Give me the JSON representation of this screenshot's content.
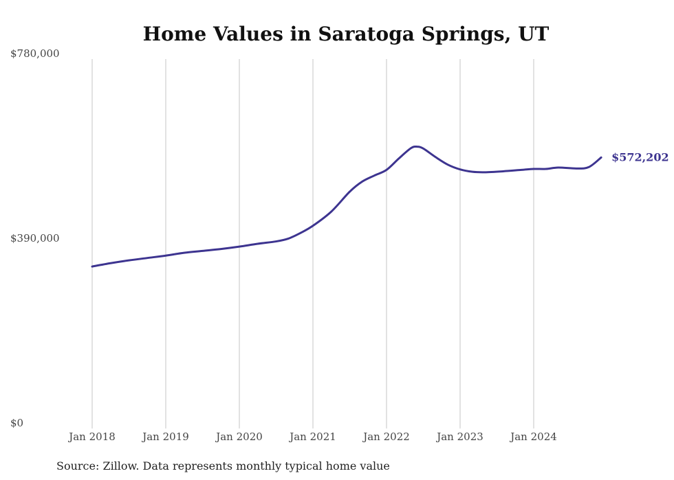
{
  "chart_data": {
    "type": "line",
    "title": "Home Values in Saratoga Springs, UT",
    "source": "Source: Zillow. Data represents monthly typical home value",
    "xlabel": "",
    "ylabel": "",
    "ylim": [
      0,
      780000
    ],
    "y_ticks": [
      {
        "value": 0,
        "label": "$0"
      },
      {
        "value": 390000,
        "label": "$390,000"
      },
      {
        "value": 780000,
        "label": "$780,000"
      }
    ],
    "x_ticks": [
      {
        "value": "2018-01",
        "label": "Jan 2018"
      },
      {
        "value": "2019-01",
        "label": "Jan 2019"
      },
      {
        "value": "2020-01",
        "label": "Jan 2020"
      },
      {
        "value": "2021-01",
        "label": "Jan 2021"
      },
      {
        "value": "2022-01",
        "label": "Jan 2022"
      },
      {
        "value": "2023-01",
        "label": "Jan 2023"
      },
      {
        "value": "2024-01",
        "label": "Jan 2024"
      }
    ],
    "grid": {
      "vertical": true,
      "horizontal": false
    },
    "series": [
      {
        "color": "#3d3490",
        "end_label": "$572,202",
        "points": [
          {
            "x": "2018-01",
            "y": 342000
          },
          {
            "x": "2018-04",
            "y": 349000
          },
          {
            "x": "2018-07",
            "y": 355000
          },
          {
            "x": "2018-10",
            "y": 360000
          },
          {
            "x": "2019-01",
            "y": 365000
          },
          {
            "x": "2019-04",
            "y": 371000
          },
          {
            "x": "2019-07",
            "y": 375000
          },
          {
            "x": "2019-10",
            "y": 379000
          },
          {
            "x": "2020-01",
            "y": 384000
          },
          {
            "x": "2020-04",
            "y": 390000
          },
          {
            "x": "2020-07",
            "y": 395000
          },
          {
            "x": "2020-09",
            "y": 401000
          },
          {
            "x": "2020-11",
            "y": 413000
          },
          {
            "x": "2021-01",
            "y": 428000
          },
          {
            "x": "2021-04",
            "y": 458000
          },
          {
            "x": "2021-07",
            "y": 500000
          },
          {
            "x": "2021-09",
            "y": 521000
          },
          {
            "x": "2021-11",
            "y": 534000
          },
          {
            "x": "2022-01",
            "y": 546000
          },
          {
            "x": "2022-03",
            "y": 570000
          },
          {
            "x": "2022-05",
            "y": 592000
          },
          {
            "x": "2022-06",
            "y": 595000
          },
          {
            "x": "2022-07",
            "y": 591000
          },
          {
            "x": "2022-09",
            "y": 573000
          },
          {
            "x": "2022-11",
            "y": 557000
          },
          {
            "x": "2023-01",
            "y": 547000
          },
          {
            "x": "2023-03",
            "y": 542000
          },
          {
            "x": "2023-05",
            "y": 541000
          },
          {
            "x": "2023-08",
            "y": 543000
          },
          {
            "x": "2023-11",
            "y": 546000
          },
          {
            "x": "2024-01",
            "y": 548000
          },
          {
            "x": "2024-03",
            "y": 548000
          },
          {
            "x": "2024-05",
            "y": 551000
          },
          {
            "x": "2024-08",
            "y": 549000
          },
          {
            "x": "2024-10",
            "y": 552000
          },
          {
            "x": "2024-12",
            "y": 572202
          }
        ]
      }
    ]
  }
}
